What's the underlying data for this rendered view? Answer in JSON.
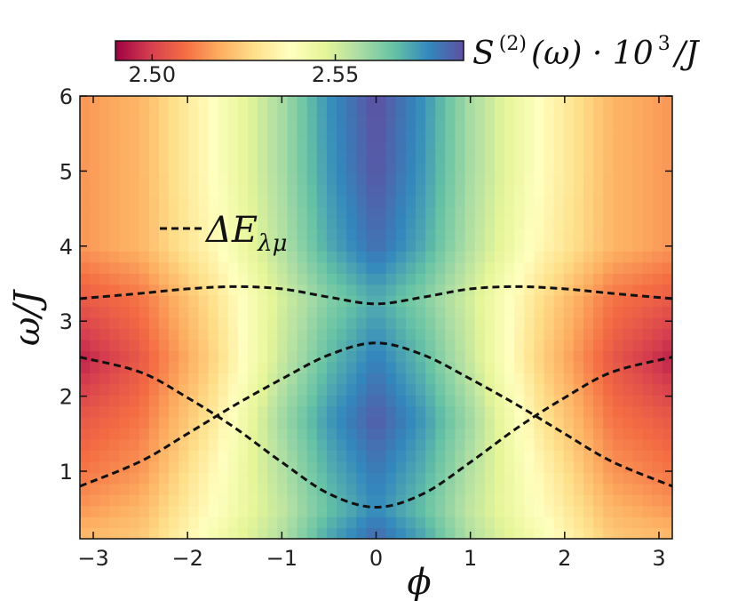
{
  "chart_data": {
    "type": "heatmap",
    "title": "",
    "xlabel": "ϕ",
    "ylabel": "ω/J",
    "xlim": [
      -3.1416,
      3.1416
    ],
    "ylim": [
      0.1,
      6.0
    ],
    "xticks": [
      -3,
      -2,
      -1,
      0,
      1,
      2,
      3
    ],
    "xtick_labels": [
      "−3",
      "−2",
      "−1",
      "0",
      "1",
      "2",
      "3"
    ],
    "yticks": [
      1,
      2,
      3,
      4,
      5,
      6
    ],
    "ytick_labels": [
      "1",
      "2",
      "3",
      "4",
      "5",
      "6"
    ],
    "colorbar": {
      "label": "S(2)(ω) · 10³/J",
      "label_parts": [
        "S",
        "(2)",
        "(ω) · 10",
        "3",
        "/J"
      ],
      "range": [
        2.49,
        2.585
      ],
      "ticks": [
        2.5,
        2.55
      ],
      "tick_labels": [
        "2.50",
        "2.55"
      ],
      "colormap": "Spectral",
      "colors": [
        "#9e0142",
        "#d53e4f",
        "#f46d43",
        "#fdae61",
        "#fee08b",
        "#ffffbf",
        "#e6f598",
        "#abdda4",
        "#66c2a5",
        "#3288bd",
        "#5e4fa2"
      ],
      "position": "top"
    },
    "heatmap_samples": {
      "x": [
        -3.1416,
        -2.5,
        -1.75,
        -1.0,
        -0.5,
        0,
        0.5,
        1.0,
        1.75,
        2.5,
        3.1416
      ],
      "y": [
        0.2,
        0.5,
        1.0,
        1.7,
        2.5,
        3.3,
        4.0,
        5.0,
        5.9
      ],
      "z": [
        [
          2.52,
          2.523,
          2.54,
          2.555,
          2.57,
          2.58,
          2.57,
          2.555,
          2.54,
          2.523,
          2.52
        ],
        [
          2.515,
          2.52,
          2.537,
          2.553,
          2.566,
          2.575,
          2.566,
          2.553,
          2.537,
          2.52,
          2.515
        ],
        [
          2.51,
          2.515,
          2.535,
          2.555,
          2.569,
          2.578,
          2.569,
          2.555,
          2.535,
          2.515,
          2.51
        ],
        [
          2.505,
          2.51,
          2.53,
          2.558,
          2.573,
          2.583,
          2.573,
          2.558,
          2.53,
          2.51,
          2.505
        ],
        [
          2.495,
          2.505,
          2.525,
          2.552,
          2.567,
          2.577,
          2.567,
          2.552,
          2.525,
          2.505,
          2.495
        ],
        [
          2.505,
          2.51,
          2.528,
          2.55,
          2.562,
          2.57,
          2.562,
          2.55,
          2.528,
          2.51,
          2.505
        ],
        [
          2.515,
          2.52,
          2.535,
          2.555,
          2.57,
          2.58,
          2.57,
          2.555,
          2.535,
          2.52,
          2.515
        ],
        [
          2.515,
          2.52,
          2.537,
          2.557,
          2.573,
          2.584,
          2.573,
          2.557,
          2.537,
          2.52,
          2.515
        ],
        [
          2.515,
          2.52,
          2.537,
          2.557,
          2.574,
          2.585,
          2.574,
          2.557,
          2.537,
          2.52,
          2.515
        ]
      ]
    },
    "series": [
      {
        "name": "ΔE_λμ",
        "style": "dashed",
        "color": "#111111",
        "curves": [
          {
            "x": [
              -3.1416,
              -2.5,
              -2.0,
              -1.5,
              -1.0,
              -0.5,
              0,
              0.5,
              1.0,
              1.5,
              2.0,
              2.5,
              3.1416
            ],
            "y": [
              3.3,
              3.37,
              3.43,
              3.46,
              3.43,
              3.32,
              3.23,
              3.32,
              3.43,
              3.46,
              3.43,
              3.37,
              3.3
            ]
          },
          {
            "x": [
              -3.1416,
              -2.5,
              -2.0,
              -1.5,
              -1.0,
              -0.5,
              0,
              0.5,
              1.0,
              1.5,
              2.0,
              2.5,
              3.1416
            ],
            "y": [
              0.8,
              1.13,
              1.5,
              1.88,
              2.23,
              2.55,
              2.71,
              2.55,
              2.23,
              1.88,
              1.5,
              1.13,
              0.8
            ]
          },
          {
            "x": [
              -3.1416,
              -2.5,
              -2.0,
              -1.5,
              -1.0,
              -0.5,
              0,
              0.5,
              1.0,
              1.5,
              2.0,
              2.5,
              3.1416
            ],
            "y": [
              2.52,
              2.32,
              1.98,
              1.58,
              1.12,
              0.7,
              0.52,
              0.7,
              1.12,
              1.58,
              1.98,
              2.32,
              2.52
            ]
          }
        ]
      }
    ],
    "legend": {
      "entries": [
        "ΔE_λμ"
      ],
      "placement": "upper-left"
    },
    "grid": false
  }
}
